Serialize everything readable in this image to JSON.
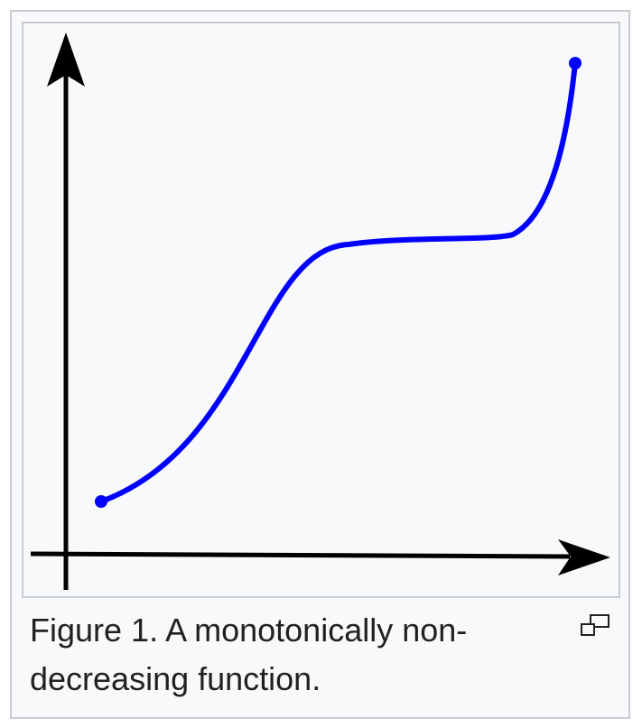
{
  "figure": {
    "caption": "Figure 1. A monotonically non-decreasing function.",
    "icons": {
      "enlarge": "magnify-clip-icon"
    }
  },
  "colors": {
    "curve": "#0000ff",
    "axes": "#000000",
    "frame_background": "#f8f9fa",
    "frame_border": "#c8ccd1",
    "caption_text": "#202122"
  }
}
